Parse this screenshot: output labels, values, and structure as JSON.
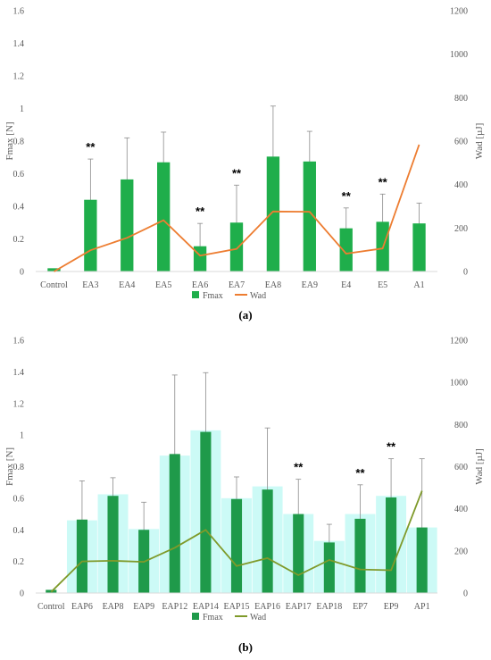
{
  "panels": [
    {
      "label": "(a)",
      "chart_data": {
        "type": "bar",
        "categories": [
          "Control",
          "EA3",
          "EA4",
          "EA5",
          "EA6",
          "EA7",
          "EA8",
          "EA9",
          "E4",
          "E5",
          "A1"
        ],
        "series": [
          {
            "name": "Fmax",
            "type": "bar",
            "axis": "left",
            "color": "#1fae4b",
            "values": [
              0.02,
              0.44,
              0.565,
              0.67,
              0.155,
              0.3,
              0.705,
              0.675,
              0.265,
              0.305,
              0.295
            ],
            "error_upper": [
              0.02,
              0.69,
              0.82,
              0.855,
              0.295,
              0.53,
              1.015,
              0.86,
              0.39,
              0.475,
              0.42
            ]
          },
          {
            "name": "Wad",
            "type": "line",
            "axis": "right",
            "color": "#ed7d31",
            "values": [
              0,
              98,
              155,
              236,
              73,
              104,
              276,
              275,
              82,
              106,
              584
            ]
          }
        ],
        "significance": [
          "",
          "**",
          "",
          "",
          "**",
          "**",
          "",
          "",
          "**",
          "**",
          ""
        ],
        "ylabel": "Fmax [N]",
        "ylabel_right": "Wad [µJ]",
        "ylim": [
          0,
          1.6
        ],
        "yticks": [
          "0",
          "0.2",
          "0.4",
          "0.6",
          "0.8",
          "1",
          "1.2",
          "1.4",
          "1.6"
        ],
        "ylim_right": [
          0,
          1200
        ],
        "yticks_right": [
          "0",
          "200",
          "400",
          "600",
          "800",
          "1000",
          "1200"
        ],
        "grid": false,
        "legend": "bottom"
      }
    },
    {
      "label": "(b)",
      "chart_data": {
        "type": "bar",
        "categories": [
          "Control",
          "EAP6",
          "EAP8",
          "EAP9",
          "EAP12",
          "EAP14",
          "EAP15",
          "EAP16",
          "EAP17",
          "EAP18",
          "EP7",
          "EP9",
          "AP1"
        ],
        "series": [
          {
            "name": "Fmax",
            "type": "bar",
            "axis": "left",
            "color": "#1f9a4a",
            "values": [
              0.02,
              0.465,
              0.615,
              0.4,
              0.88,
              1.02,
              0.595,
              0.655,
              0.5,
              0.32,
              0.47,
              0.605,
              0.415
            ],
            "error_upper": [
              0.02,
              0.71,
              0.73,
              0.575,
              1.38,
              1.395,
              0.735,
              1.045,
              0.72,
              0.435,
              0.685,
              0.85,
              0.85
            ]
          },
          {
            "name": "Wad",
            "type": "line",
            "axis": "right",
            "color": "#7f9a2a",
            "values": [
              5,
              150,
              153,
              148,
              215,
              300,
              128,
              166,
              85,
              157,
              112,
              108,
              485
            ]
          }
        ],
        "background_bars": {
          "color": "#ccfaf6",
          "values": [
            0,
            0.46,
            0.625,
            0.405,
            0.87,
            1.03,
            0.6,
            0.675,
            0.5,
            0.33,
            0.5,
            0.615,
            0.415
          ]
        },
        "significance": [
          "",
          "",
          "",
          "",
          "",
          "",
          "",
          "",
          "**",
          "",
          "**",
          "**",
          ""
        ],
        "ylabel": "Fmax [N]",
        "ylabel_right": "Wad [µJ]",
        "ylim": [
          0,
          1.6
        ],
        "yticks": [
          "0",
          "0.2",
          "0.4",
          "0.6",
          "0.8",
          "1",
          "1.2",
          "1.4",
          "1.6"
        ],
        "ylim_right": [
          0,
          1200
        ],
        "yticks_right": [
          "0",
          "200",
          "400",
          "600",
          "800",
          "1000",
          "1200"
        ],
        "grid": false,
        "legend": "bottom"
      }
    }
  ]
}
